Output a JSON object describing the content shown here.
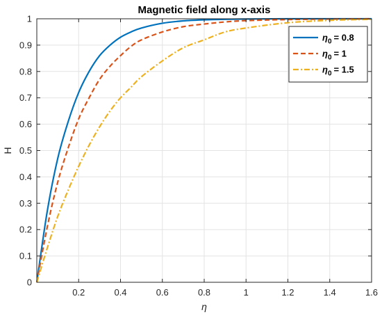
{
  "chart_data": {
    "type": "line",
    "title": "Magnetic field along x-axis",
    "xlabel": "η",
    "ylabel": "H",
    "xlim": [
      0,
      1.6
    ],
    "ylim": [
      0,
      1
    ],
    "x_ticks": [
      0.2,
      0.4,
      0.6,
      0.8,
      1.0,
      1.2,
      1.4,
      1.6
    ],
    "x_tick_labels": [
      "0.2",
      "0.4",
      "0.6",
      "0.8",
      "1",
      "1.2",
      "1.4",
      "1.6"
    ],
    "y_ticks": [
      0,
      0.1,
      0.2,
      0.3,
      0.4,
      0.5,
      0.6,
      0.7,
      0.8,
      0.9,
      1.0
    ],
    "y_tick_labels": [
      "0",
      "0.1",
      "0.2",
      "0.3",
      "0.4",
      "0.5",
      "0.6",
      "0.7",
      "0.8",
      "0.9",
      "1"
    ],
    "grid": true,
    "legend_position": "top-right",
    "legend_symbol": "η",
    "legend_subscript": "0",
    "series": [
      {
        "name": "= 0.8",
        "color": "#0072BD",
        "dash": "solid",
        "x": [
          0,
          0.05,
          0.1,
          0.15,
          0.2,
          0.25,
          0.3,
          0.35,
          0.4,
          0.45,
          0.5,
          0.6,
          0.7,
          0.8,
          0.9,
          1.0,
          1.2,
          1.4,
          1.6
        ],
        "y": [
          0,
          0.27,
          0.47,
          0.61,
          0.72,
          0.8,
          0.86,
          0.9,
          0.93,
          0.95,
          0.965,
          0.983,
          0.992,
          0.996,
          0.998,
          0.999,
          1.0,
          1.0,
          1.0
        ]
      },
      {
        "name": "= 1",
        "color": "#D95319",
        "dash": "dashed",
        "x": [
          0,
          0.05,
          0.1,
          0.15,
          0.2,
          0.25,
          0.3,
          0.35,
          0.4,
          0.45,
          0.5,
          0.6,
          0.7,
          0.8,
          0.9,
          1.0,
          1.2,
          1.4,
          1.6
        ],
        "y": [
          0,
          0.21,
          0.38,
          0.51,
          0.62,
          0.7,
          0.77,
          0.82,
          0.86,
          0.895,
          0.92,
          0.95,
          0.97,
          0.98,
          0.988,
          0.993,
          0.997,
          0.999,
          1.0
        ]
      },
      {
        "name": "= 1.5",
        "color": "#EDB120",
        "dash": "dashdot",
        "x": [
          0,
          0.05,
          0.1,
          0.15,
          0.2,
          0.25,
          0.3,
          0.35,
          0.4,
          0.45,
          0.5,
          0.6,
          0.7,
          0.8,
          0.9,
          1.0,
          1.2,
          1.4,
          1.6
        ],
        "y": [
          0,
          0.13,
          0.25,
          0.35,
          0.44,
          0.52,
          0.59,
          0.65,
          0.7,
          0.74,
          0.78,
          0.84,
          0.89,
          0.92,
          0.95,
          0.965,
          0.985,
          0.994,
          0.998
        ]
      }
    ]
  }
}
